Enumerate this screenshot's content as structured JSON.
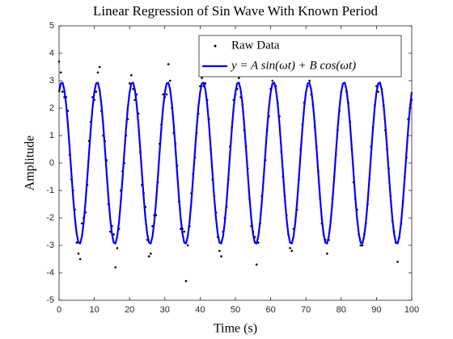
{
  "chart_data": {
    "type": "line",
    "title": "Linear Regression of Sin Wave With Known Period",
    "xlabel": "Time (s)",
    "ylabel": "Amplitude",
    "xlim": [
      0,
      100
    ],
    "ylim": [
      -5,
      5
    ],
    "xticks": [
      0,
      10,
      20,
      30,
      40,
      50,
      60,
      70,
      80,
      90,
      100
    ],
    "yticks": [
      -5,
      -4,
      -3,
      -2,
      -1,
      0,
      1,
      2,
      3,
      4,
      5
    ],
    "legend": "top-right",
    "series": [
      {
        "name": "Raw Data",
        "type": "scatter",
        "color": "#000000",
        "x": [
          0,
          1,
          2,
          3,
          4,
          5,
          6,
          7,
          8,
          9,
          10,
          11,
          12,
          13,
          14,
          15,
          16,
          17,
          18,
          19,
          20,
          21,
          22,
          23,
          24,
          25,
          26,
          27,
          28,
          29,
          30,
          31,
          32,
          33,
          34,
          35,
          36,
          37,
          38,
          39,
          40,
          41,
          42,
          43,
          44,
          45,
          46,
          47,
          48,
          49,
          50,
          51,
          52,
          53,
          54,
          55,
          56,
          57,
          58,
          59,
          60,
          61,
          62,
          63,
          64,
          65,
          66,
          67,
          68,
          69,
          70,
          71,
          72,
          73,
          74,
          75,
          76,
          77,
          78,
          79,
          80,
          81,
          82,
          83,
          84,
          85,
          86,
          87,
          88,
          89,
          90,
          91,
          92,
          93,
          94,
          95,
          96,
          97,
          98,
          99,
          100,
          0.5,
          1.5,
          2.5,
          3.5,
          4.5,
          5.5,
          6.5,
          7.5,
          8.5,
          9.5,
          10.5,
          11.5,
          12.5,
          13.5,
          14.5,
          15.5,
          16.5,
          17.5,
          18.5,
          19.5,
          20.5,
          21.5,
          22.5,
          23.5,
          24.5,
          25.5,
          26.5,
          27.5,
          28.5,
          29.5,
          30.5,
          31.5,
          32.5,
          33.5,
          34.5,
          35.5,
          36.5,
          37.5,
          38.5,
          39.5,
          40.5,
          41.5,
          42.5,
          43.5,
          44.5,
          45.5,
          46.5,
          47.5,
          48.5,
          49.5,
          50.5,
          51.5,
          52.5,
          53.5,
          54.5,
          55.5,
          56.5,
          57.5,
          58.5,
          59.5,
          60.5,
          61.5,
          62.5,
          63.5,
          64.5,
          65.5,
          66.5,
          67.5,
          68.5,
          69.5,
          70.5,
          71.5,
          72.5,
          73.5,
          74.5,
          75.5,
          76.5,
          77.5,
          78.5,
          79.5,
          80.5,
          81.5,
          82.5,
          83.5,
          84.5,
          85.5,
          86.5,
          87.5,
          88.5,
          89.5,
          90.5,
          91.5,
          92.5,
          93.5,
          94.5,
          95.5,
          96.5,
          97.5,
          98.5,
          99.5
        ],
        "values": [
          3.7,
          2.6,
          2.4,
          0.3,
          -1.0,
          -2.9,
          -3.5,
          -2.0,
          -0.8,
          1.5,
          2.3,
          3.3,
          1.9,
          0.8,
          -1.5,
          -2.3,
          -3.8,
          -2.4,
          -0.3,
          1.0,
          2.9,
          2.7,
          2.5,
          0.4,
          -1.1,
          -2.8,
          -3.3,
          -1.9,
          -0.7,
          1.4,
          2.4,
          3.6,
          2.0,
          0.7,
          -1.4,
          -2.4,
          -4.3,
          -2.3,
          -0.4,
          1.1,
          2.8,
          2.8,
          2.3,
          0.5,
          -1.2,
          -2.7,
          -3.4,
          -2.0,
          -0.6,
          1.3,
          2.5,
          3.1,
          2.1,
          0.6,
          -1.3,
          -2.5,
          -3.7,
          -2.2,
          -0.5,
          1.2,
          2.7,
          2.9,
          2.2,
          0.4,
          -1.2,
          -2.6,
          -3.2,
          -2.1,
          -0.6,
          1.4,
          3.6,
          3.0,
          2.1,
          0.6,
          -1.3,
          -2.6,
          -3.3,
          -2.1,
          -0.5,
          1.2,
          2.6,
          3.5,
          2.2,
          0.5,
          -1.3,
          -2.6,
          -3.0,
          -2.2,
          -0.6,
          1.3,
          2.8,
          2.9,
          2.1,
          0.5,
          -1.2,
          -2.5,
          -3.6,
          -2.2,
          -0.5,
          1.6,
          2.3,
          3.3,
          2.4,
          1.9,
          -0.6,
          -1.7,
          -3.3,
          -2.2,
          -1.8,
          0.8,
          2.4,
          2.6,
          3.5,
          1.0,
          0.1,
          -2.5,
          -2.6,
          -3.1,
          -1.0,
          0.0,
          1.6,
          3.2,
          2.3,
          1.8,
          -0.8,
          -1.6,
          -3.4,
          -2.3,
          -1.9,
          0.7,
          2.5,
          2.5,
          3.0,
          1.1,
          -0.1,
          -2.4,
          -2.5,
          -3.0,
          -1.1,
          0.2,
          1.8,
          3.1,
          2.9,
          1.6,
          -0.6,
          -1.8,
          -3.2,
          -2.5,
          -1.6,
          0.6,
          2.3,
          2.7,
          2.4,
          1.2,
          -0.2,
          -2.3,
          -2.7,
          -2.9,
          -1.2,
          0.1,
          1.7,
          3.0,
          2.8,
          1.7,
          -0.5,
          -1.9,
          -3.1,
          -2.4,
          -1.7,
          0.5,
          2.2,
          2.8,
          2.5,
          1.3,
          -0.3,
          -2.2,
          -2.8,
          -2.8,
          -1.3,
          0.3,
          1.9,
          3.4,
          2.6,
          1.5,
          -0.7,
          -1.7,
          -3.0,
          -2.6,
          -1.5,
          0.6,
          2.1,
          2.6,
          2.7,
          1.2,
          -0.2,
          -2.1,
          -2.9,
          -2.7,
          -1.4,
          0.2,
          2.0
        ]
      },
      {
        "name": "y = A sin(ωt) + B cos(ωt)",
        "type": "line",
        "color": "#0000ff",
        "x": [
          0,
          0.5,
          1,
          1.5,
          2,
          2.5,
          3,
          3.5,
          4,
          4.5,
          5,
          5.5,
          6,
          6.5,
          7,
          7.5,
          8,
          8.5,
          9,
          9.5,
          10,
          10.5,
          11,
          11.5,
          12,
          12.5,
          13,
          13.5,
          14,
          14.5,
          15,
          15.5,
          16,
          16.5,
          17,
          17.5,
          18,
          18.5,
          19,
          19.5,
          20,
          20.5,
          21,
          21.5,
          22,
          22.5,
          23,
          23.5,
          24,
          24.5,
          25,
          25.5,
          26,
          26.5,
          27,
          27.5,
          28,
          28.5,
          29,
          29.5,
          30,
          30.5,
          31,
          31.5,
          32,
          32.5,
          33,
          33.5,
          34,
          34.5,
          35,
          35.5,
          36,
          36.5,
          37,
          37.5,
          38,
          38.5,
          39,
          39.5,
          40,
          40.5,
          41,
          41.5,
          42,
          42.5,
          43,
          43.5,
          44,
          44.5,
          45,
          45.5,
          46,
          46.5,
          47,
          47.5,
          48,
          48.5,
          49,
          49.5,
          50,
          50.5,
          51,
          51.5,
          52,
          52.5,
          53,
          53.5,
          54,
          54.5,
          55,
          55.5,
          56,
          56.5,
          57,
          57.5,
          58,
          58.5,
          59,
          59.5,
          60,
          60.5,
          61,
          61.5,
          62,
          62.5,
          63,
          63.5,
          64,
          64.5,
          65,
          65.5,
          66,
          66.5,
          67,
          67.5,
          68,
          68.5,
          69,
          69.5,
          70,
          70.5,
          71,
          71.5,
          72,
          72.5,
          73,
          73.5,
          74,
          74.5,
          75,
          75.5,
          76,
          76.5,
          77,
          77.5,
          78,
          78.5,
          79,
          79.5,
          80,
          80.5,
          81,
          81.5,
          82,
          82.5,
          83,
          83.5,
          84,
          84.5,
          85,
          85.5,
          86,
          86.5,
          87,
          87.5,
          88,
          88.5,
          89,
          89.5,
          90,
          90.5,
          91,
          91.5,
          92,
          92.5,
          93,
          93.5,
          94,
          94.5,
          95,
          95.5,
          96,
          96.5,
          97,
          97.5,
          98,
          98.5,
          99,
          99.5,
          100
        ],
        "values": [
          2.58,
          2.9,
          2.93,
          2.67,
          2.15,
          1.42,
          0.55,
          -0.37,
          -1.26,
          -2.02,
          -2.58,
          -2.9,
          -2.93,
          -2.67,
          -2.15,
          -1.42,
          -0.55,
          0.37,
          1.26,
          2.02,
          2.58,
          2.9,
          2.93,
          2.67,
          2.15,
          1.42,
          0.55,
          -0.37,
          -1.26,
          -2.02,
          -2.58,
          -2.9,
          -2.93,
          -2.67,
          -2.15,
          -1.42,
          -0.55,
          0.37,
          1.26,
          2.02,
          2.58,
          2.9,
          2.93,
          2.67,
          2.15,
          1.42,
          0.55,
          -0.37,
          -1.26,
          -2.02,
          -2.58,
          -2.9,
          -2.93,
          -2.67,
          -2.15,
          -1.42,
          -0.55,
          0.37,
          1.26,
          2.02,
          2.58,
          2.9,
          2.93,
          2.67,
          2.15,
          1.42,
          0.55,
          -0.37,
          -1.26,
          -2.02,
          -2.58,
          -2.9,
          -2.93,
          -2.67,
          -2.15,
          -1.42,
          -0.55,
          0.37,
          1.26,
          2.02,
          2.58,
          2.9,
          2.93,
          2.67,
          2.15,
          1.42,
          0.55,
          -0.37,
          -1.26,
          -2.02,
          -2.58,
          -2.9,
          -2.93,
          -2.67,
          -2.15,
          -1.42,
          -0.55,
          0.37,
          1.26,
          2.02,
          2.58,
          2.9,
          2.93,
          2.67,
          2.15,
          1.42,
          0.55,
          -0.37,
          -1.26,
          -2.02,
          -2.58,
          -2.9,
          -2.93,
          -2.67,
          -2.15,
          -1.42,
          -0.55,
          0.37,
          1.26,
          2.02,
          2.58,
          2.9,
          2.93,
          2.67,
          2.15,
          1.42,
          0.55,
          -0.37,
          -1.26,
          -2.02,
          -2.58,
          -2.9,
          -2.93,
          -2.67,
          -2.15,
          -1.42,
          -0.55,
          0.37,
          1.26,
          2.02,
          2.58,
          2.9,
          2.93,
          2.67,
          2.15,
          1.42,
          0.55,
          -0.37,
          -1.26,
          -2.02,
          -2.58,
          -2.9,
          -2.93,
          -2.67,
          -2.15,
          -1.42,
          -0.55,
          0.37,
          1.26,
          2.02,
          2.58,
          2.9,
          2.93,
          2.67,
          2.15,
          1.42,
          0.55,
          -0.37,
          -1.26,
          -2.02,
          -2.58,
          -2.9,
          -2.93,
          -2.67,
          -2.15,
          -1.42,
          -0.55,
          0.37,
          1.26,
          2.02,
          2.58,
          2.9,
          2.93,
          2.67,
          2.15,
          1.42,
          0.55,
          -0.37,
          -1.26,
          -2.02,
          -2.58,
          -2.9,
          -2.93,
          -2.67,
          -2.15,
          -1.42,
          -0.55,
          0.37,
          1.26,
          2.02,
          2.58
        ]
      }
    ]
  }
}
